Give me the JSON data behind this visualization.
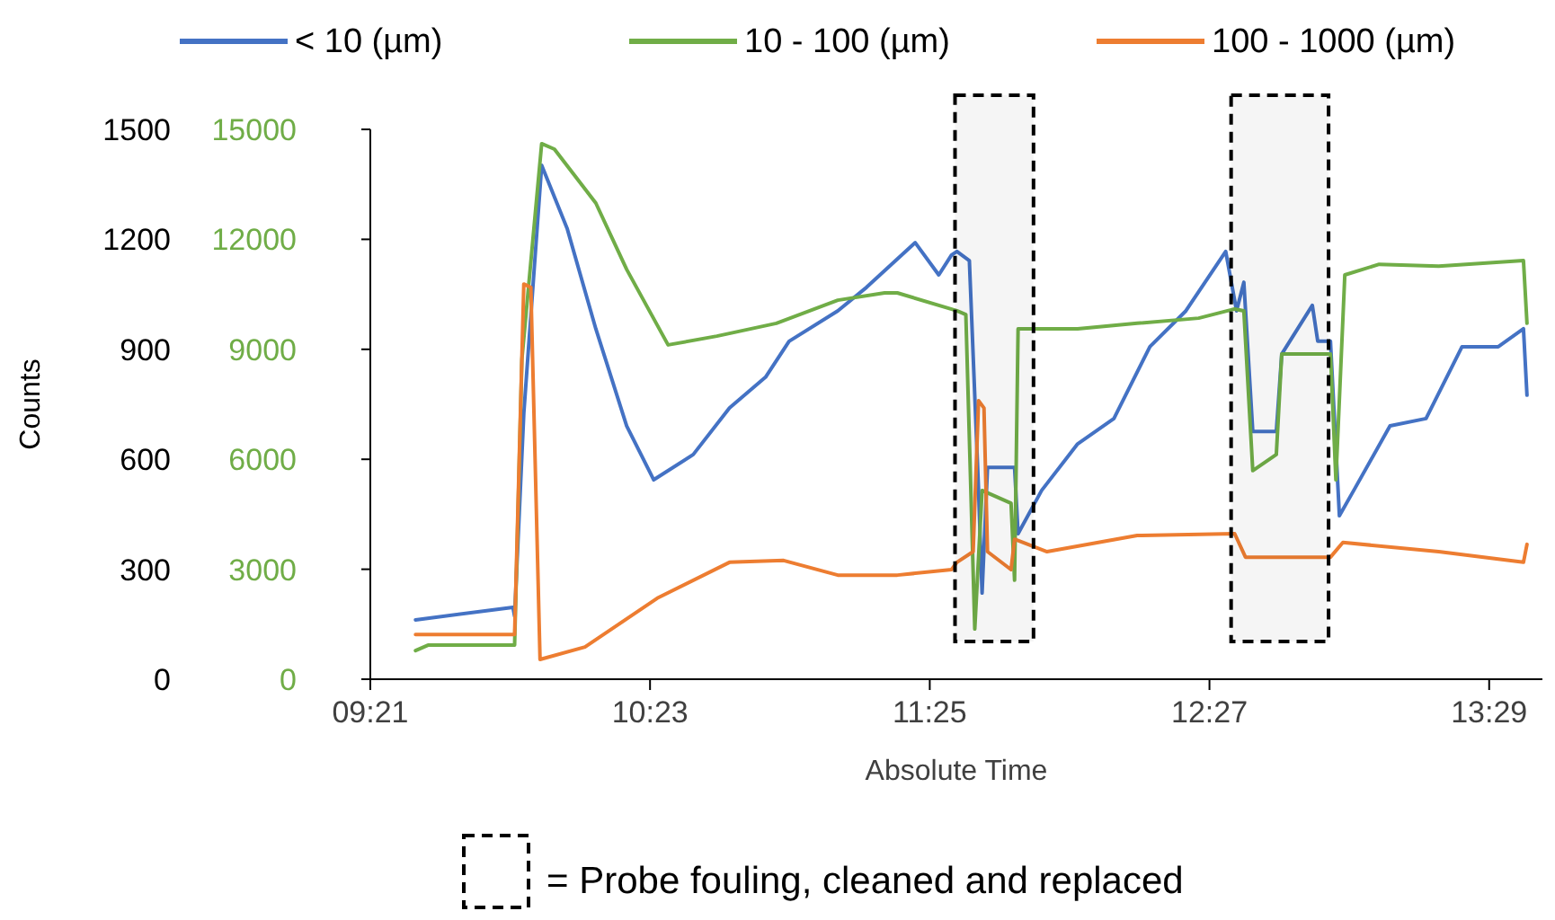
{
  "chart_data": {
    "type": "line",
    "xlabel": "Absolute Time",
    "ylabel": "Counts",
    "legend": "top",
    "grid": false,
    "line_style": "solid",
    "marker": "none",
    "xlim": [
      9.35,
      13.68
    ],
    "xticks": [
      {
        "value": 9.35,
        "label": "09:21"
      },
      {
        "value": 10.3833,
        "label": "10:23"
      },
      {
        "value": 11.4167,
        "label": "11:25"
      },
      {
        "value": 12.45,
        "label": "12:27"
      },
      {
        "value": 13.4833,
        "label": "13:29"
      }
    ],
    "ylim": [
      0,
      1500
    ],
    "yticks": [
      0,
      300,
      600,
      900,
      1200,
      1500
    ],
    "y2lim": [
      0,
      15000
    ],
    "y2ticks": [
      0,
      3000,
      6000,
      9000,
      12000,
      15000
    ],
    "bands": [
      {
        "axis": "x",
        "from": 11.51,
        "to": 11.8,
        "color": "#000000"
      },
      {
        "axis": "x",
        "from": 12.53,
        "to": 12.89,
        "color": "#000000"
      }
    ],
    "annotations": [
      "= Probe fouling, cleaned and replaced"
    ],
    "series": [
      {
        "name": "< 10 (µm)",
        "color": "#4472c4",
        "x": [
          9.517,
          9.877,
          9.883,
          9.917,
          9.983,
          10.077,
          10.183,
          10.297,
          10.397,
          10.543,
          10.677,
          10.81,
          10.897,
          11.077,
          11.183,
          11.363,
          11.45,
          11.497,
          11.517,
          11.563,
          11.597,
          11.61,
          11.63,
          11.73,
          11.743,
          11.83,
          11.963,
          12.097,
          12.23,
          12.363,
          12.51,
          12.55,
          12.577,
          12.61,
          12.697,
          12.717,
          12.83,
          12.85,
          12.897,
          12.93,
          12.983,
          13.117,
          13.25,
          13.383,
          13.517,
          13.61,
          13.623
        ],
        "values": [
          162,
          196,
          172,
          725,
          1402,
          1230,
          956,
          691,
          544,
          613,
          740,
          824,
          922,
          1005,
          1069,
          1191,
          1103,
          1157,
          1167,
          1142,
          515,
          235,
          578,
          578,
          397,
          515,
          642,
          711,
          907,
          1005,
          1167,
          1005,
          1083,
          676,
          676,
          887,
          1020,
          922,
          922,
          446,
          515,
          691,
          711,
          907,
          907,
          956,
          775
        ]
      },
      {
        "name": "10 - 100 (µm)",
        "color": "#70ad47",
        "axis": "y2",
        "x": [
          9.517,
          9.563,
          9.883,
          9.91,
          9.983,
          10.03,
          10.183,
          10.297,
          10.45,
          10.63,
          10.85,
          11.077,
          11.25,
          11.297,
          11.517,
          11.55,
          11.583,
          11.61,
          11.717,
          11.73,
          11.743,
          11.963,
          12.183,
          12.41,
          12.543,
          12.577,
          12.61,
          12.697,
          12.717,
          12.897,
          12.917,
          12.95,
          13.077,
          13.297,
          13.61,
          13.623
        ],
        "values": [
          780,
          930,
          930,
          8730,
          14610,
          14460,
          12990,
          11180,
          9120,
          9360,
          9710,
          10340,
          10540,
          10540,
          10050,
          9950,
          1370,
          5150,
          4800,
          2700,
          9560,
          9560,
          9710,
          9850,
          10100,
          10050,
          5690,
          6130,
          8870,
          8870,
          5440,
          11030,
          11320,
          11270,
          11420,
          9710
        ]
      },
      {
        "name": "100 - 1000 (µm)",
        "color": "#ed7d31",
        "x": [
          9.517,
          9.883,
          9.917,
          9.943,
          9.977,
          10.143,
          10.41,
          10.677,
          10.877,
          11.077,
          11.297,
          11.497,
          11.517,
          11.577,
          11.597,
          11.617,
          11.63,
          11.717,
          11.73,
          11.85,
          12.183,
          12.543,
          12.583,
          12.897,
          12.943,
          13.297,
          13.61,
          13.623
        ],
        "values": [
          122,
          122,
          1078,
          1069,
          54,
          88,
          221,
          319,
          324,
          284,
          284,
          299,
          319,
          348,
          760,
          740,
          348,
          299,
          382,
          348,
          392,
          397,
          333,
          333,
          373,
          348,
          319,
          368
        ]
      }
    ]
  }
}
